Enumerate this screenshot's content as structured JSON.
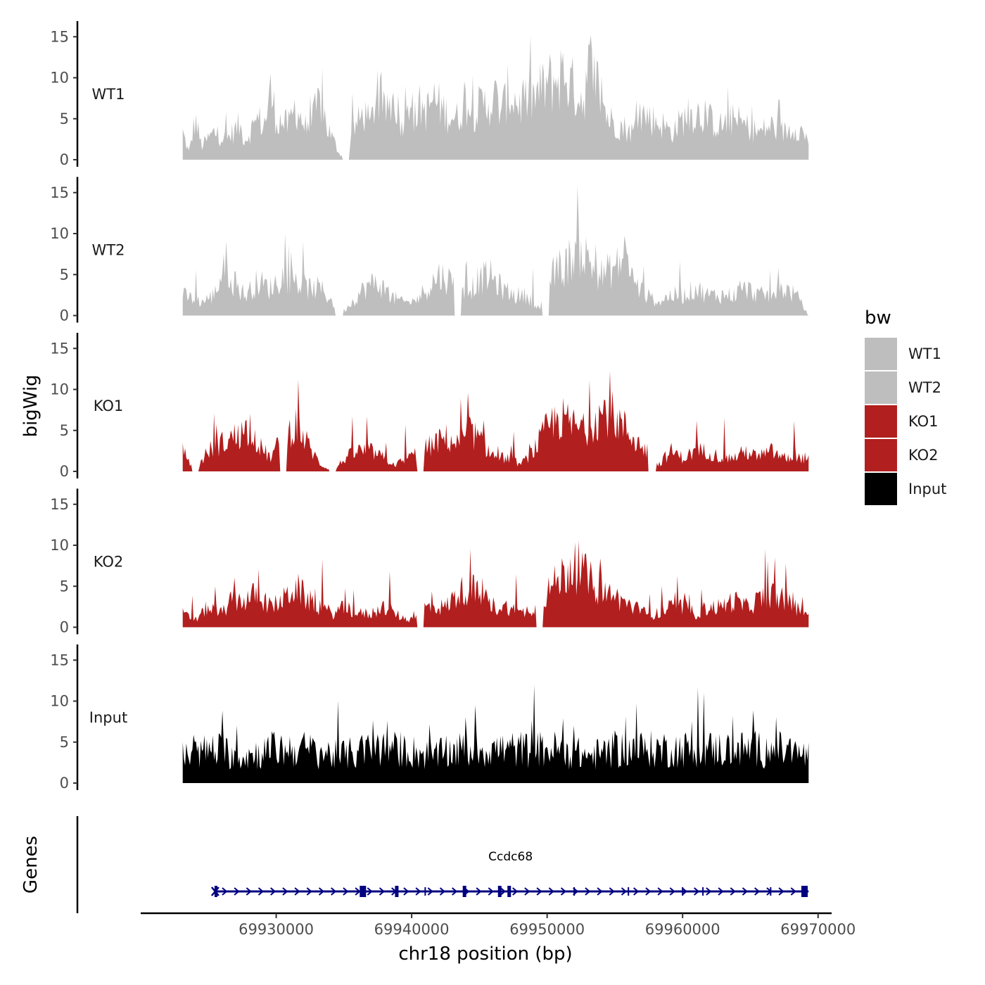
{
  "chart_data": {
    "type": "area",
    "ylabel": "bigWig",
    "xlabel": "chr18 position (bp)",
    "ylim": [
      0,
      16
    ],
    "yticks": [
      0,
      5,
      10,
      15
    ],
    "xlim": [
      69920000,
      69971000
    ],
    "xrange_data": [
      69923100,
      69969300
    ],
    "xticks": [
      69930000,
      69940000,
      69950000,
      69960000,
      69970000
    ],
    "xtick_labels": [
      "69930000",
      "69940000",
      "69950000",
      "69960000",
      "69970000"
    ],
    "tracks": [
      {
        "name": "WT1",
        "color": "#bebebe",
        "anchors": [
          [
            0.0,
            4
          ],
          [
            0.01,
            1
          ],
          [
            0.02,
            6
          ],
          [
            0.03,
            2
          ],
          [
            0.05,
            4
          ],
          [
            0.07,
            3
          ],
          [
            0.09,
            5
          ],
          [
            0.1,
            3
          ],
          [
            0.12,
            6
          ],
          [
            0.13,
            5
          ],
          [
            0.14,
            10
          ],
          [
            0.15,
            6
          ],
          [
            0.17,
            5
          ],
          [
            0.18,
            8
          ],
          [
            0.2,
            4
          ],
          [
            0.22,
            9
          ],
          [
            0.23,
            5
          ],
          [
            0.25,
            1
          ],
          [
            0.26,
            0
          ],
          [
            0.27,
            4
          ],
          [
            0.29,
            7
          ],
          [
            0.3,
            5
          ],
          [
            0.31,
            10
          ],
          [
            0.32,
            7
          ],
          [
            0.34,
            9
          ],
          [
            0.35,
            5
          ],
          [
            0.36,
            11
          ],
          [
            0.37,
            6
          ],
          [
            0.38,
            8
          ],
          [
            0.39,
            7
          ],
          [
            0.4,
            9
          ],
          [
            0.41,
            8
          ],
          [
            0.42,
            7
          ],
          [
            0.44,
            6
          ],
          [
            0.45,
            9
          ],
          [
            0.46,
            7
          ],
          [
            0.48,
            8
          ],
          [
            0.5,
            9
          ],
          [
            0.51,
            7
          ],
          [
            0.52,
            10
          ],
          [
            0.53,
            9
          ],
          [
            0.54,
            8
          ],
          [
            0.55,
            9
          ],
          [
            0.56,
            9
          ],
          [
            0.57,
            10
          ],
          [
            0.58,
            11
          ],
          [
            0.6,
            12
          ],
          [
            0.61,
            13
          ],
          [
            0.62,
            11
          ],
          [
            0.63,
            10
          ],
          [
            0.64,
            9
          ],
          [
            0.65,
            14
          ],
          [
            0.66,
            12
          ],
          [
            0.67,
            9
          ],
          [
            0.68,
            6
          ],
          [
            0.7,
            5
          ],
          [
            0.72,
            4
          ],
          [
            0.73,
            7
          ],
          [
            0.75,
            6
          ],
          [
            0.77,
            5
          ],
          [
            0.78,
            4
          ],
          [
            0.8,
            6
          ],
          [
            0.82,
            7
          ],
          [
            0.84,
            6
          ],
          [
            0.86,
            5
          ],
          [
            0.88,
            6
          ],
          [
            0.9,
            5
          ],
          [
            0.92,
            4
          ],
          [
            0.94,
            5
          ],
          [
            0.96,
            4
          ],
          [
            0.98,
            5
          ],
          [
            1.0,
            3
          ]
        ],
        "dips": [
          0.26
        ]
      },
      {
        "name": "WT2",
        "color": "#bebebe",
        "anchors": [
          [
            0.0,
            3
          ],
          [
            0.03,
            2
          ],
          [
            0.05,
            3
          ],
          [
            0.07,
            8
          ],
          [
            0.08,
            5
          ],
          [
            0.1,
            3
          ],
          [
            0.12,
            5
          ],
          [
            0.14,
            4
          ],
          [
            0.16,
            6
          ],
          [
            0.18,
            5
          ],
          [
            0.2,
            4
          ],
          [
            0.22,
            4
          ],
          [
            0.24,
            2
          ],
          [
            0.25,
            0
          ],
          [
            0.27,
            2
          ],
          [
            0.29,
            4
          ],
          [
            0.31,
            5
          ],
          [
            0.33,
            3
          ],
          [
            0.35,
            2
          ],
          [
            0.37,
            2
          ],
          [
            0.39,
            4
          ],
          [
            0.41,
            6
          ],
          [
            0.43,
            5
          ],
          [
            0.45,
            3
          ],
          [
            0.47,
            5
          ],
          [
            0.49,
            6
          ],
          [
            0.51,
            4
          ],
          [
            0.53,
            3
          ],
          [
            0.55,
            3
          ],
          [
            0.57,
            1
          ],
          [
            0.59,
            6
          ],
          [
            0.61,
            7
          ],
          [
            0.63,
            10
          ],
          [
            0.65,
            8
          ],
          [
            0.67,
            6
          ],
          [
            0.69,
            7
          ],
          [
            0.71,
            9
          ],
          [
            0.72,
            5
          ],
          [
            0.74,
            3
          ],
          [
            0.76,
            2
          ],
          [
            0.78,
            3
          ],
          [
            0.8,
            3
          ],
          [
            0.82,
            4
          ],
          [
            0.84,
            3
          ],
          [
            0.86,
            3
          ],
          [
            0.88,
            3
          ],
          [
            0.9,
            4
          ],
          [
            0.92,
            3
          ],
          [
            0.94,
            3
          ],
          [
            0.96,
            4
          ],
          [
            0.98,
            3
          ],
          [
            1.0,
            0
          ]
        ],
        "dips": [
          0.25,
          0.44,
          0.58
        ]
      },
      {
        "name": "KO1",
        "color": "#b21f1f",
        "anchors": [
          [
            0.0,
            3
          ],
          [
            0.02,
            0
          ],
          [
            0.04,
            3
          ],
          [
            0.06,
            4
          ],
          [
            0.08,
            5
          ],
          [
            0.1,
            6
          ],
          [
            0.11,
            7
          ],
          [
            0.12,
            4
          ],
          [
            0.14,
            2
          ],
          [
            0.16,
            5
          ],
          [
            0.18,
            7
          ],
          [
            0.2,
            4
          ],
          [
            0.22,
            1
          ],
          [
            0.24,
            0
          ],
          [
            0.26,
            2
          ],
          [
            0.28,
            3
          ],
          [
            0.3,
            3
          ],
          [
            0.32,
            2
          ],
          [
            0.34,
            1
          ],
          [
            0.36,
            2
          ],
          [
            0.38,
            3
          ],
          [
            0.4,
            4
          ],
          [
            0.42,
            5
          ],
          [
            0.44,
            4
          ],
          [
            0.46,
            6
          ],
          [
            0.48,
            4
          ],
          [
            0.5,
            2
          ],
          [
            0.52,
            2
          ],
          [
            0.54,
            1
          ],
          [
            0.56,
            3
          ],
          [
            0.58,
            6
          ],
          [
            0.6,
            8
          ],
          [
            0.62,
            7
          ],
          [
            0.64,
            6
          ],
          [
            0.66,
            8
          ],
          [
            0.68,
            9
          ],
          [
            0.7,
            7
          ],
          [
            0.72,
            5
          ],
          [
            0.74,
            3
          ],
          [
            0.76,
            1
          ],
          [
            0.78,
            3
          ],
          [
            0.8,
            2
          ],
          [
            0.82,
            3
          ],
          [
            0.84,
            3
          ],
          [
            0.86,
            2
          ],
          [
            0.88,
            2
          ],
          [
            0.9,
            3
          ],
          [
            0.92,
            2
          ],
          [
            0.94,
            3
          ],
          [
            0.96,
            2
          ],
          [
            0.98,
            2
          ],
          [
            1.0,
            2
          ]
        ],
        "dips": [
          0.02,
          0.16,
          0.24,
          0.38,
          0.75
        ]
      },
      {
        "name": "KO2",
        "color": "#b21f1f",
        "anchors": [
          [
            0.0,
            2
          ],
          [
            0.02,
            1
          ],
          [
            0.04,
            3
          ],
          [
            0.06,
            2
          ],
          [
            0.08,
            4
          ],
          [
            0.1,
            4
          ],
          [
            0.12,
            5
          ],
          [
            0.14,
            3
          ],
          [
            0.16,
            4
          ],
          [
            0.18,
            6
          ],
          [
            0.2,
            4
          ],
          [
            0.22,
            3
          ],
          [
            0.24,
            2
          ],
          [
            0.26,
            3
          ],
          [
            0.28,
            2
          ],
          [
            0.3,
            2
          ],
          [
            0.32,
            3
          ],
          [
            0.34,
            2
          ],
          [
            0.36,
            1
          ],
          [
            0.38,
            3
          ],
          [
            0.4,
            3
          ],
          [
            0.42,
            3
          ],
          [
            0.44,
            5
          ],
          [
            0.46,
            6
          ],
          [
            0.48,
            4
          ],
          [
            0.5,
            3
          ],
          [
            0.52,
            3
          ],
          [
            0.54,
            2
          ],
          [
            0.56,
            3
          ],
          [
            0.58,
            5
          ],
          [
            0.6,
            7
          ],
          [
            0.62,
            9
          ],
          [
            0.64,
            8
          ],
          [
            0.66,
            6
          ],
          [
            0.68,
            5
          ],
          [
            0.7,
            4
          ],
          [
            0.72,
            3
          ],
          [
            0.74,
            2
          ],
          [
            0.76,
            2
          ],
          [
            0.78,
            3
          ],
          [
            0.8,
            3
          ],
          [
            0.82,
            2
          ],
          [
            0.84,
            3
          ],
          [
            0.86,
            3
          ],
          [
            0.88,
            4
          ],
          [
            0.9,
            3
          ],
          [
            0.92,
            4
          ],
          [
            0.94,
            5
          ],
          [
            0.96,
            4
          ],
          [
            0.98,
            3
          ],
          [
            1.0,
            2
          ]
        ],
        "dips": [
          0.38,
          0.57
        ]
      },
      {
        "name": "Input",
        "color": "#000000",
        "anchors": [
          [
            0.0,
            4
          ],
          [
            0.05,
            5
          ],
          [
            0.1,
            4
          ],
          [
            0.15,
            5
          ],
          [
            0.2,
            5
          ],
          [
            0.25,
            4
          ],
          [
            0.3,
            5
          ],
          [
            0.35,
            5
          ],
          [
            0.4,
            4
          ],
          [
            0.45,
            5
          ],
          [
            0.5,
            5
          ],
          [
            0.55,
            5
          ],
          [
            0.6,
            5
          ],
          [
            0.65,
            4
          ],
          [
            0.7,
            5
          ],
          [
            0.75,
            5
          ],
          [
            0.8,
            5
          ],
          [
            0.85,
            5
          ],
          [
            0.9,
            5
          ],
          [
            0.95,
            5
          ],
          [
            1.0,
            4
          ]
        ],
        "dips": []
      }
    ],
    "legend": {
      "title": "bw",
      "position": "right",
      "entries": [
        {
          "label": "WT1",
          "color": "#bebebe"
        },
        {
          "label": "WT2",
          "color": "#bebebe"
        },
        {
          "label": "KO1",
          "color": "#b21f1f"
        },
        {
          "label": "KO2",
          "color": "#b21f1f"
        },
        {
          "label": "Input",
          "color": "#000000"
        }
      ]
    },
    "genes_track": {
      "label": "Genes",
      "gene_name": "Ccdc68",
      "color": "#000080",
      "start": 69925500,
      "end": 69969300,
      "exons": [
        69936400,
        69938900,
        69943900,
        69946500,
        69947200,
        69969000
      ]
    }
  }
}
